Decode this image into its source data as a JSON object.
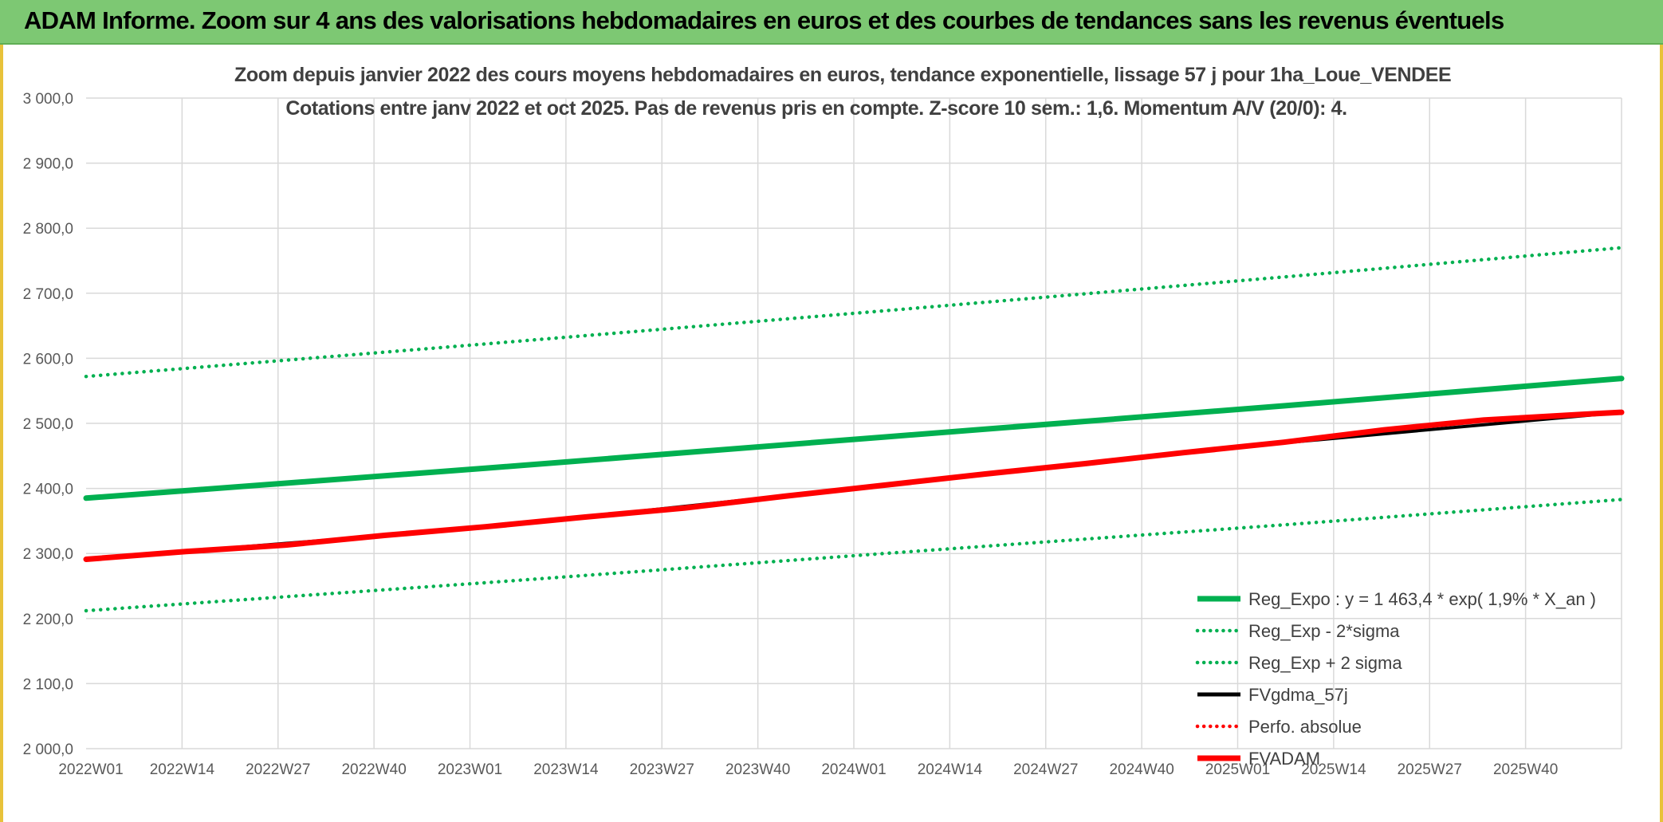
{
  "header": {
    "title": "ADAM Informe. Zoom sur 4 ans des valorisations hebdomadaires en euros et des courbes de tendances sans les revenus éventuels"
  },
  "colors": {
    "header_bg": "#7dc873",
    "green_series": "#00b050",
    "red_series": "#ff0000",
    "black_series": "#000000",
    "grid": "#d9d9d9",
    "frame_accent": "#e8c23a"
  },
  "chart_data": {
    "type": "line",
    "title": "Zoom depuis janvier 2022 des cours moyens hebdomadaires en euros, tendance exponentielle, lissage 57 j pour 1ha_Loue_VENDEE",
    "subtitle": "Cotations entre janv 2022 et oct 2025. Pas de revenus pris en compte. Z-score 10 sem.: 1,6. Momentum A/V (20/0): 4.",
    "xlabel": "",
    "ylabel": "",
    "ylim": [
      2000,
      3000
    ],
    "y_ticks": [
      "2 000,0",
      "2 100,0",
      "2 200,0",
      "2 300,0",
      "2 400,0",
      "2 500,0",
      "2 600,0",
      "2 700,0",
      "2 800,0",
      "2 900,0",
      "3 000,0"
    ],
    "x_ticks": [
      "2022W01",
      "2022W14",
      "2022W27",
      "2022W40",
      "2023W01",
      "2023W14",
      "2023W27",
      "2023W40",
      "2024W01",
      "2024W14",
      "2024W27",
      "2024W40",
      "2025W01",
      "2025W14",
      "2025W27",
      "2025W40"
    ],
    "x_range_weeks": [
      0,
      200
    ],
    "grid": true,
    "legend_position": "bottom-right",
    "series": [
      {
        "name": "Reg_Expo : y = 1 463,4 * exp( 1,9% *  X_an )",
        "style": "solid-thick",
        "color": "#00b050",
        "x": [
          0,
          52,
          104,
          156,
          200
        ],
        "values": [
          2385,
          2431,
          2479,
          2527,
          2569
        ]
      },
      {
        "name": "Reg_Exp - 2*sigma",
        "style": "dotted",
        "color": "#00b050",
        "x": [
          0,
          52,
          104,
          156,
          200
        ],
        "values": [
          2212,
          2255,
          2300,
          2344,
          2383
        ]
      },
      {
        "name": "Reg_Exp + 2 sigma",
        "style": "dotted",
        "color": "#00b050",
        "x": [
          0,
          52,
          104,
          156,
          200
        ],
        "values": [
          2572,
          2622,
          2673,
          2725,
          2770
        ]
      },
      {
        "name": "FVgdma_57j",
        "style": "solid",
        "color": "#000000",
        "x": [
          0,
          52,
          104,
          156,
          200
        ],
        "values": [
          2291,
          2340,
          2405,
          2470,
          2517
        ]
      },
      {
        "name": "Perfo. absolue",
        "style": "dotted",
        "color": "#ff0000",
        "x": [],
        "values": []
      },
      {
        "name": "FVADAM",
        "style": "solid-thick",
        "color": "#ff0000",
        "x": [
          0,
          13,
          26,
          39,
          52,
          65,
          78,
          91,
          104,
          117,
          130,
          143,
          156,
          169,
          182,
          195,
          200
        ],
        "values": [
          2291,
          2303,
          2313,
          2328,
          2341,
          2356,
          2370,
          2388,
          2405,
          2422,
          2438,
          2455,
          2471,
          2490,
          2505,
          2514,
          2517
        ]
      }
    ]
  }
}
